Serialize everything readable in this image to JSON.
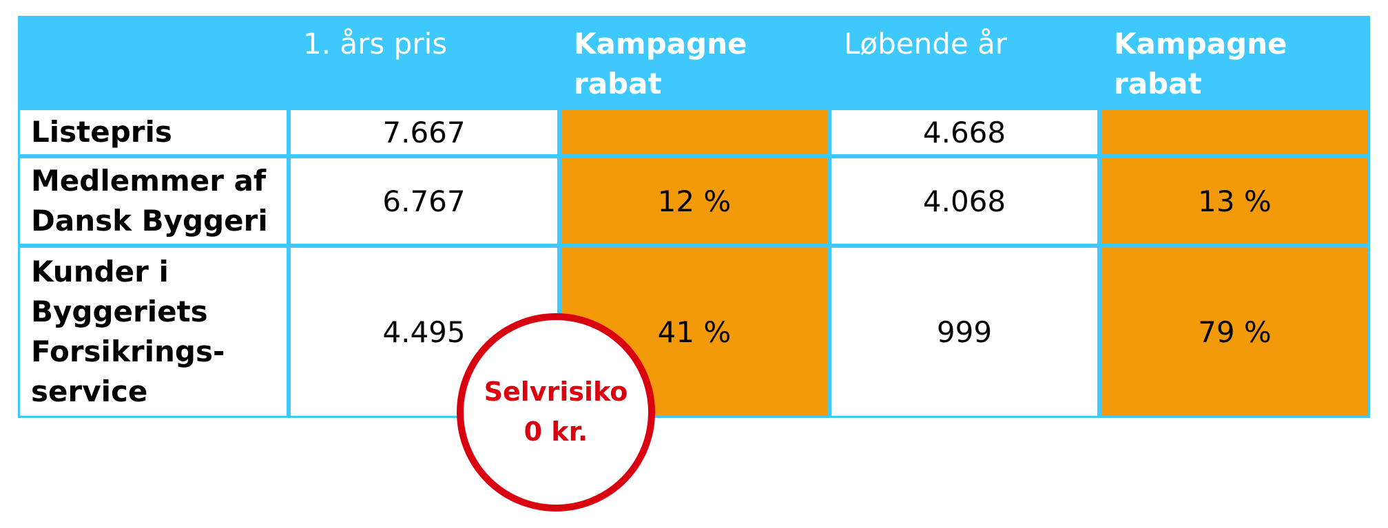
{
  "table": {
    "header": [
      {
        "lines": [
          "1. års pris"
        ],
        "bold": false
      },
      {
        "lines": [
          "Kampagne",
          "rabat"
        ],
        "bold": true
      },
      {
        "lines": [
          "Løbende år"
        ],
        "bold": false
      },
      {
        "lines": [
          "Kampagne",
          "rabat"
        ],
        "bold": true
      }
    ],
    "rows": [
      {
        "label": [
          "Listepris"
        ],
        "cells": [
          "7.667",
          null,
          "4.668",
          null
        ]
      },
      {
        "label": [
          "Medlemmer af",
          "Dansk Byggeri"
        ],
        "cells": [
          "6.767",
          "12 %",
          "4.068",
          "13 %"
        ]
      },
      {
        "label": [
          "Kunder i",
          "Byggeriets",
          "Forsikrings-",
          "service"
        ],
        "cells": [
          "4.495",
          "41 %",
          "999",
          "79 %"
        ]
      }
    ]
  },
  "badge": {
    "lines": [
      "Selvrisiko",
      "0 kr."
    ]
  }
}
